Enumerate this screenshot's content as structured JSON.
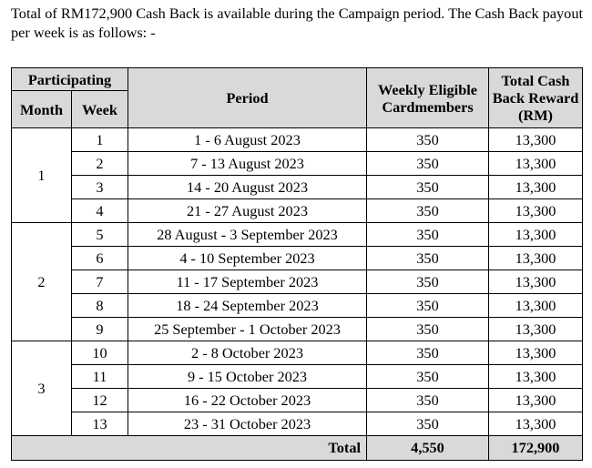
{
  "intro": "Total of RM172,900 Cash Back is available during the Campaign period. The Cash Back payout per week is as follows: -",
  "table": {
    "headers": {
      "participating": "Participating",
      "month": "Month",
      "week": "Week",
      "period": "Period",
      "eligible": "Weekly Eligible Cardmembers",
      "reward": "Total Cash Back Reward (RM)"
    },
    "months": [
      {
        "month": "1",
        "weeks": [
          {
            "week": "1",
            "period": "1 - 6 August 2023",
            "eligible": "350",
            "reward": "13,300"
          },
          {
            "week": "2",
            "period": "7 - 13 August 2023",
            "eligible": "350",
            "reward": "13,300"
          },
          {
            "week": "3",
            "period": "14 - 20 August 2023",
            "eligible": "350",
            "reward": "13,300"
          },
          {
            "week": "4",
            "period": "21 - 27 August 2023",
            "eligible": "350",
            "reward": "13,300"
          }
        ]
      },
      {
        "month": "2",
        "weeks": [
          {
            "week": "5",
            "period": "28 August - 3 September 2023",
            "eligible": "350",
            "reward": "13,300"
          },
          {
            "week": "6",
            "period": "4 - 10 September 2023",
            "eligible": "350",
            "reward": "13,300"
          },
          {
            "week": "7",
            "period": "11 - 17 September 2023",
            "eligible": "350",
            "reward": "13,300"
          },
          {
            "week": "8",
            "period": "18 - 24 September 2023",
            "eligible": "350",
            "reward": "13,300"
          },
          {
            "week": "9",
            "period": "25 September - 1 October 2023",
            "eligible": "350",
            "reward": "13,300"
          }
        ]
      },
      {
        "month": "3",
        "weeks": [
          {
            "week": "10",
            "period": "2 - 8 October 2023",
            "eligible": "350",
            "reward": "13,300"
          },
          {
            "week": "11",
            "period": "9 - 15 October 2023",
            "eligible": "350",
            "reward": "13,300"
          },
          {
            "week": "12",
            "period": "16 - 22 October 2023",
            "eligible": "350",
            "reward": "13,300"
          },
          {
            "week": "13",
            "period": "23 - 31 October 2023",
            "eligible": "350",
            "reward": "13,300"
          }
        ]
      }
    ],
    "total": {
      "label": "Total",
      "eligible": "4,550",
      "reward": "172,900"
    }
  }
}
